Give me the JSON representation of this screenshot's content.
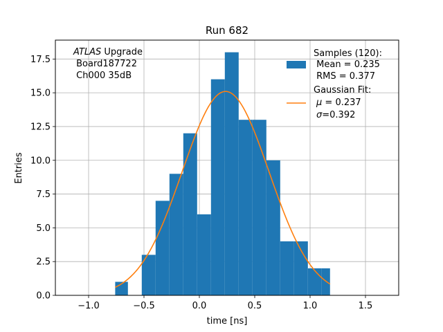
{
  "chart_data": {
    "type": "bar",
    "title": "Run 682",
    "xlabel": "time [ns]",
    "ylabel": "Entries",
    "xlim": [
      -1.3,
      1.8
    ],
    "ylim": [
      0,
      18.9
    ],
    "grid": true,
    "x_ticks": [
      -1.0,
      -0.5,
      0.0,
      0.5,
      1.0,
      1.5
    ],
    "x_tick_labels": [
      "−1.0",
      "−0.5",
      "0.0",
      "0.5",
      "1.0",
      "1.5"
    ],
    "y_ticks": [
      0.0,
      2.5,
      5.0,
      7.5,
      10.0,
      12.5,
      15.0,
      17.5
    ],
    "y_tick_labels": [
      "0.0",
      "2.5",
      "5.0",
      "7.5",
      "10.0",
      "12.5",
      "15.0",
      "17.5"
    ],
    "bin_edges": [
      -0.76,
      -0.645,
      -0.52,
      -0.395,
      -0.27,
      -0.145,
      -0.02,
      0.105,
      0.23,
      0.355,
      0.48,
      0.605,
      0.73,
      0.855,
      0.98,
      1.105,
      1.18
    ],
    "bin_edges_note": "",
    "bins": [
      {
        "x0": -0.76,
        "x1": -0.645,
        "count": 1
      },
      {
        "x0": -0.52,
        "x1": -0.395,
        "count": 3
      },
      {
        "x0": -0.395,
        "x1": -0.27,
        "count": 7
      },
      {
        "x0": -0.27,
        "x1": -0.145,
        "count": 9
      },
      {
        "x0": -0.145,
        "x1": -0.02,
        "count": 12
      },
      {
        "x0": -0.02,
        "x1": 0.105,
        "count": 6
      },
      {
        "x0": 0.105,
        "x1": 0.23,
        "count": 16
      },
      {
        "x0": 0.23,
        "x1": 0.355,
        "count": 18
      },
      {
        "x0": 0.355,
        "x1": 0.48,
        "count": 13
      },
      {
        "x0": 0.48,
        "x1": 0.605,
        "count": 13
      },
      {
        "x0": 0.605,
        "x1": 0.73,
        "count": 10
      },
      {
        "x0": 0.73,
        "x1": 0.855,
        "count": 4
      },
      {
        "x0": 0.855,
        "x1": 0.98,
        "count": 4
      },
      {
        "x0": 0.98,
        "x1": 1.105,
        "count": 2
      },
      {
        "x0": 1.105,
        "x1": 1.18,
        "count": 2
      }
    ],
    "fit": {
      "amplitude": 15.1,
      "mu": 0.237,
      "sigma": 0.392,
      "x_range": [
        -0.76,
        1.18
      ]
    },
    "legend_position": "top-right",
    "colors": {
      "bars": "#1f77b4",
      "fit": "#ff7f0e",
      "grid": "#b0b0b0"
    }
  },
  "legend": {
    "samples_line1": "Samples (120):",
    "samples_line2": " Mean = 0.235",
    "samples_line3": " RMS = 0.377",
    "fit_line1": "Gaussian Fit:",
    "fit_mu_sym": "μ",
    "fit_mu_val": " = 0.237",
    "fit_sigma_sym": "σ",
    "fit_sigma_val": "=0.392"
  },
  "annotation": {
    "atlas": "ATLAS",
    "upgrade": " Upgrade",
    "board": " Board187722",
    "channel": " Ch000 35dB"
  }
}
